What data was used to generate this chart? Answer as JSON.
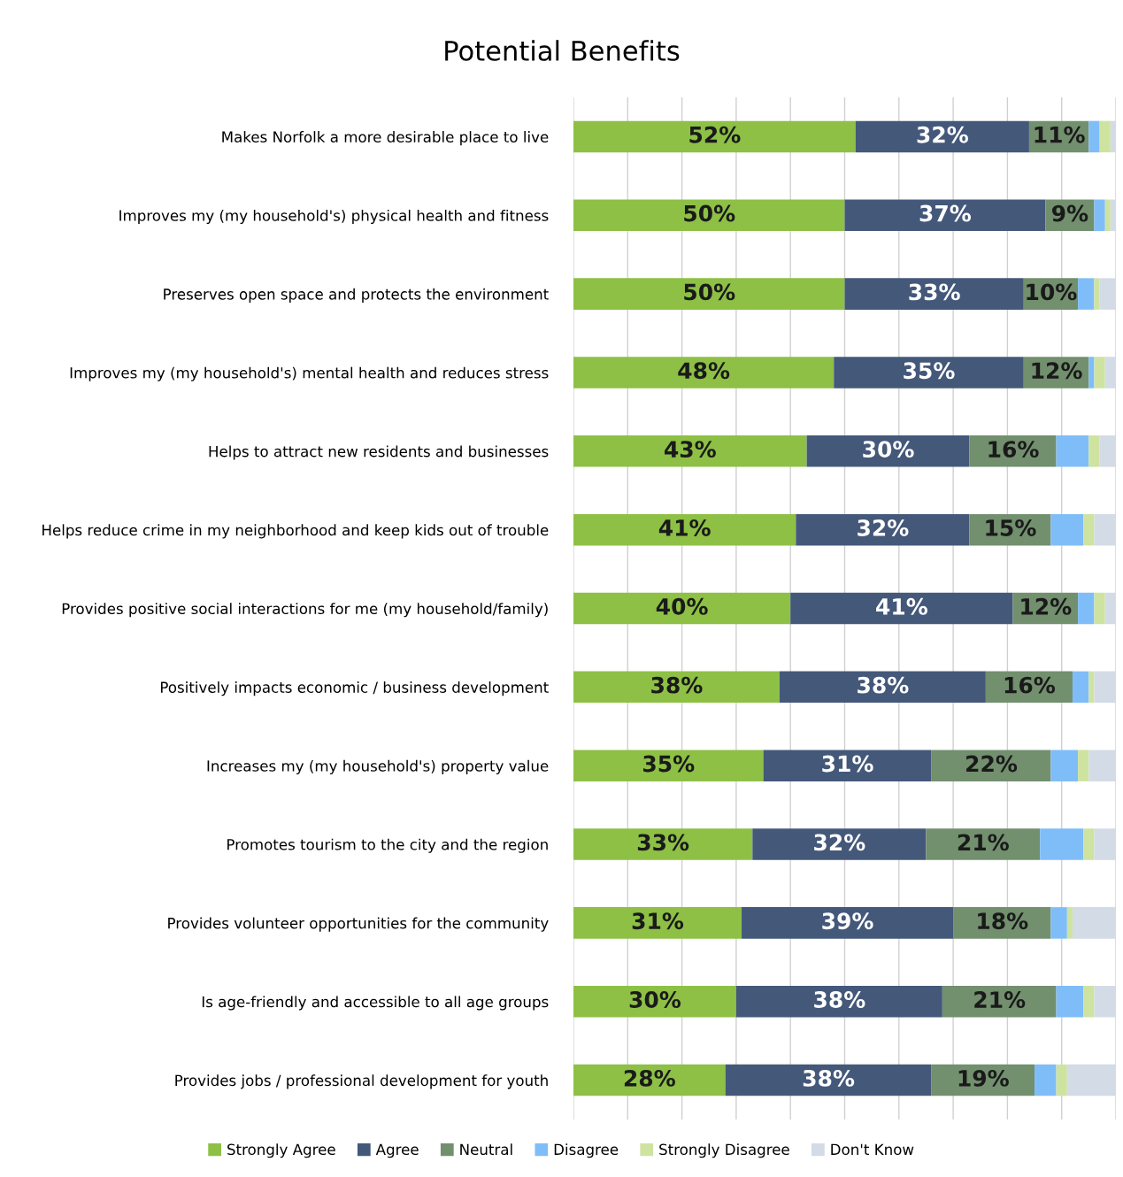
{
  "chart_data": {
    "type": "bar",
    "orientation": "horizontal",
    "stacked": true,
    "title": "Potential Benefits",
    "categories": [
      "Makes Norfolk a more desirable place to live",
      "Improves my (my household's) physical health and fitness",
      "Preserves open space and protects the environment",
      "Improves my (my household's) mental health and reduces stress",
      "Helps to attract new residents and businesses",
      "Helps reduce crime in my neighborhood and keep kids out of trouble",
      "Provides positive social interactions for me (my household/family)",
      "Positively impacts economic / business development",
      "Increases my (my household's) property value",
      "Promotes tourism to the city and the region",
      "Provides volunteer opportunities for the community",
      "Is age-friendly and accessible to all age groups",
      "Provides jobs / professional development for youth"
    ],
    "series": [
      {
        "name": "Strongly Agree",
        "color": "#8dc045",
        "values": [
          52,
          50,
          50,
          48,
          43,
          41,
          40,
          38,
          35,
          33,
          31,
          30,
          28
        ],
        "value_labels": [
          "52%",
          "50%",
          "50%",
          "48%",
          "43%",
          "41%",
          "40%",
          "38%",
          "35%",
          "33%",
          "31%",
          "30%",
          "28%"
        ]
      },
      {
        "name": "Agree",
        "color": "#44587a",
        "values": [
          32,
          37,
          33,
          35,
          30,
          32,
          41,
          38,
          31,
          32,
          39,
          38,
          38
        ],
        "value_labels": [
          "32%",
          "37%",
          "33%",
          "35%",
          "30%",
          "32%",
          "41%",
          "38%",
          "31%",
          "32%",
          "39%",
          "38%",
          "38%"
        ]
      },
      {
        "name": "Neutral",
        "color": "#728f6e",
        "values": [
          11,
          9,
          10,
          12,
          16,
          15,
          12,
          16,
          22,
          21,
          18,
          21,
          19
        ],
        "value_labels": [
          "11%",
          "9%",
          "10%",
          "12%",
          "16%",
          "15%",
          "12%",
          "16%",
          "22%",
          "21%",
          "18%",
          "21%",
          "19%"
        ]
      },
      {
        "name": "Disagree",
        "color": "#7fbdf8",
        "values": [
          2,
          2,
          3,
          1,
          6,
          6,
          3,
          3,
          5,
          8,
          3,
          5,
          4
        ]
      },
      {
        "name": "Strongly Disagree",
        "color": "#cfe3a0",
        "values": [
          2,
          1,
          1,
          2,
          2,
          2,
          2,
          1,
          2,
          2,
          1,
          2,
          2
        ]
      },
      {
        "name": "Don't Know",
        "color": "#d3dbe6",
        "values": [
          1,
          1,
          3,
          2,
          3,
          4,
          2,
          4,
          5,
          4,
          8,
          4,
          9
        ]
      }
    ],
    "xlim": [
      0,
      100
    ],
    "xticks": [
      {
        "value": 0,
        "label": null
      },
      {
        "value": 10,
        "label": null
      },
      {
        "value": 20,
        "label": null
      },
      {
        "value": 30,
        "label": null
      },
      {
        "value": 40,
        "label": null
      },
      {
        "value": 50,
        "label": null
      },
      {
        "value": 60,
        "label": null
      },
      {
        "value": 70,
        "label": null
      },
      {
        "value": 80,
        "label": null
      },
      {
        "value": 90,
        "label": null
      },
      {
        "value": 100,
        "label": null
      }
    ],
    "grid": "x",
    "legend": "bottom"
  }
}
